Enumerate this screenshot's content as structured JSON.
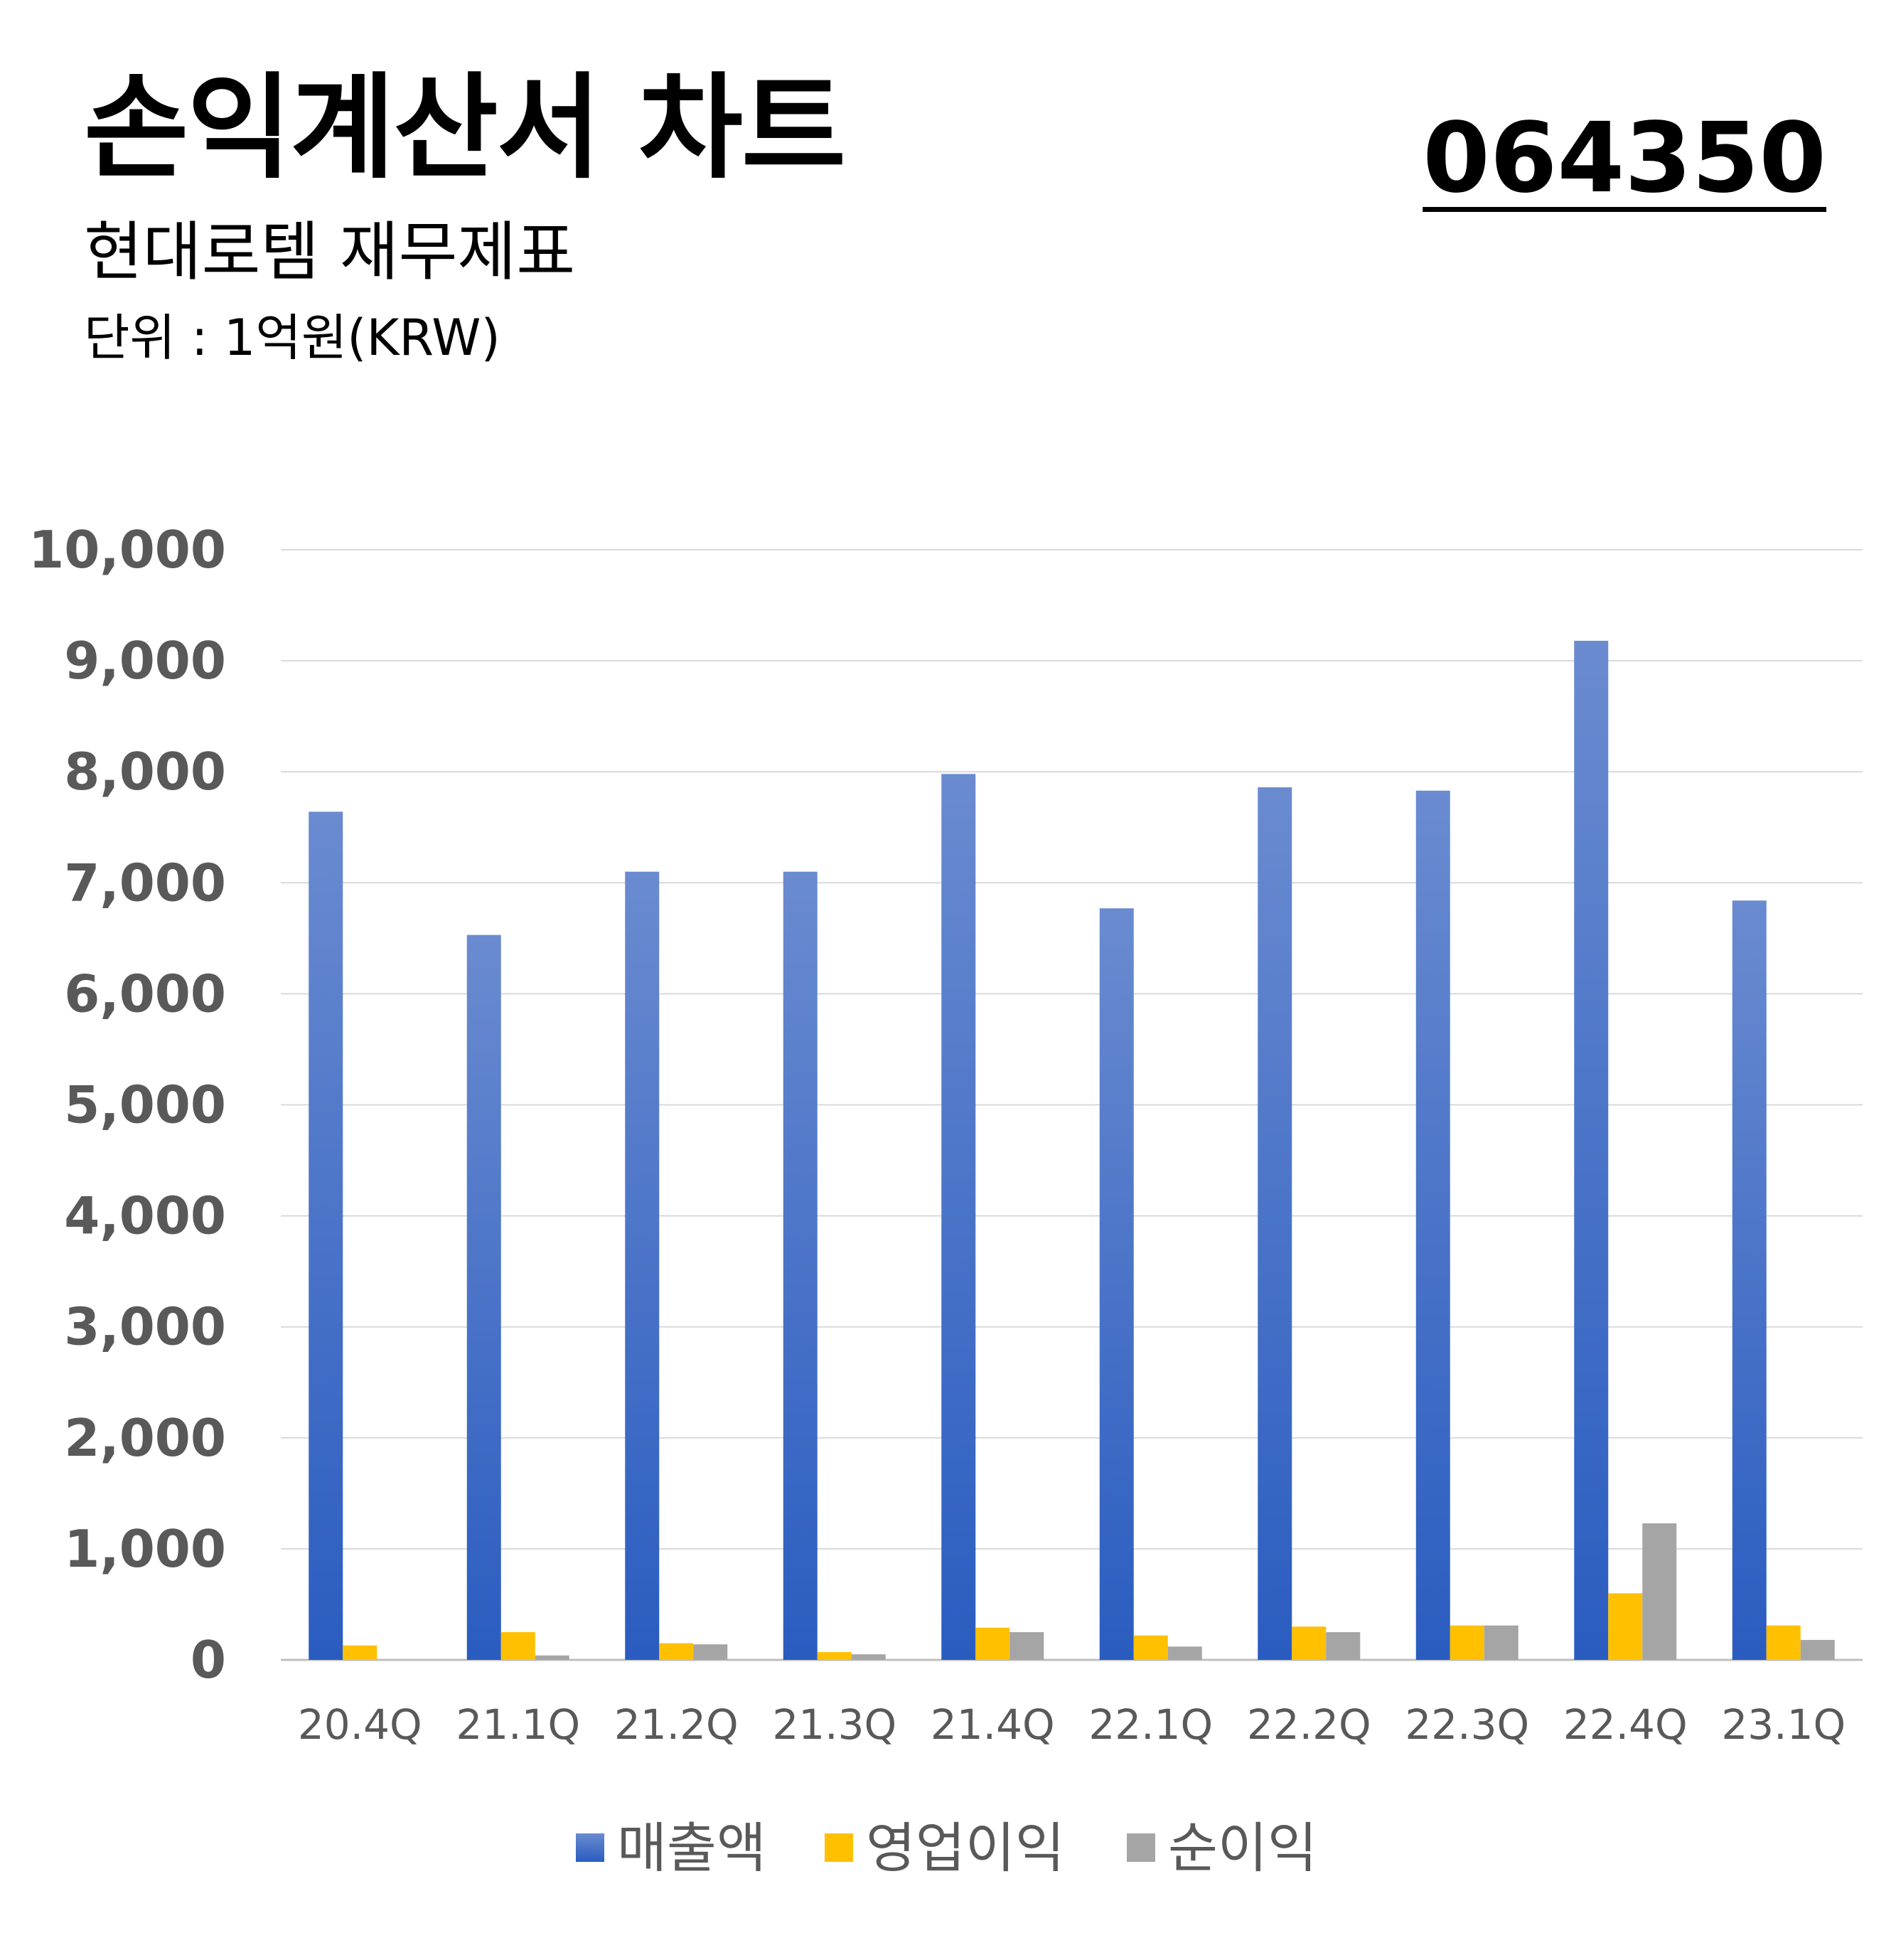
{
  "header": {
    "title": "손익계산서 차트",
    "subtitle": "현대로템 재무제표",
    "unit": "단위 : 1억원(KRW)",
    "code": "064350"
  },
  "chart_data": {
    "type": "bar",
    "categories": [
      "20.4Q",
      "21.1Q",
      "21.2Q",
      "21.3Q",
      "21.4Q",
      "22.1Q",
      "22.2Q",
      "22.3Q",
      "22.4Q",
      "23.1Q"
    ],
    "series": [
      {
        "name": "매출액",
        "color": "#3567c7",
        "values": [
          7640,
          6530,
          7100,
          7100,
          7980,
          6770,
          7860,
          7830,
          9180,
          6840
        ]
      },
      {
        "name": "영업이익",
        "color": "#ffc000",
        "values": [
          130,
          250,
          150,
          70,
          290,
          220,
          300,
          310,
          600,
          310
        ]
      },
      {
        "name": "순이익",
        "color": "#a5a5a5",
        "values": [
          0,
          40,
          140,
          50,
          250,
          120,
          250,
          310,
          1230,
          180
        ]
      }
    ],
    "ylim": [
      0,
      10000
    ],
    "yticks": [
      "0",
      "1,000",
      "2,000",
      "3,000",
      "4,000",
      "5,000",
      "6,000",
      "7,000",
      "8,000",
      "9,000",
      "10,000"
    ],
    "grid": true,
    "legend": "bottom-center"
  }
}
